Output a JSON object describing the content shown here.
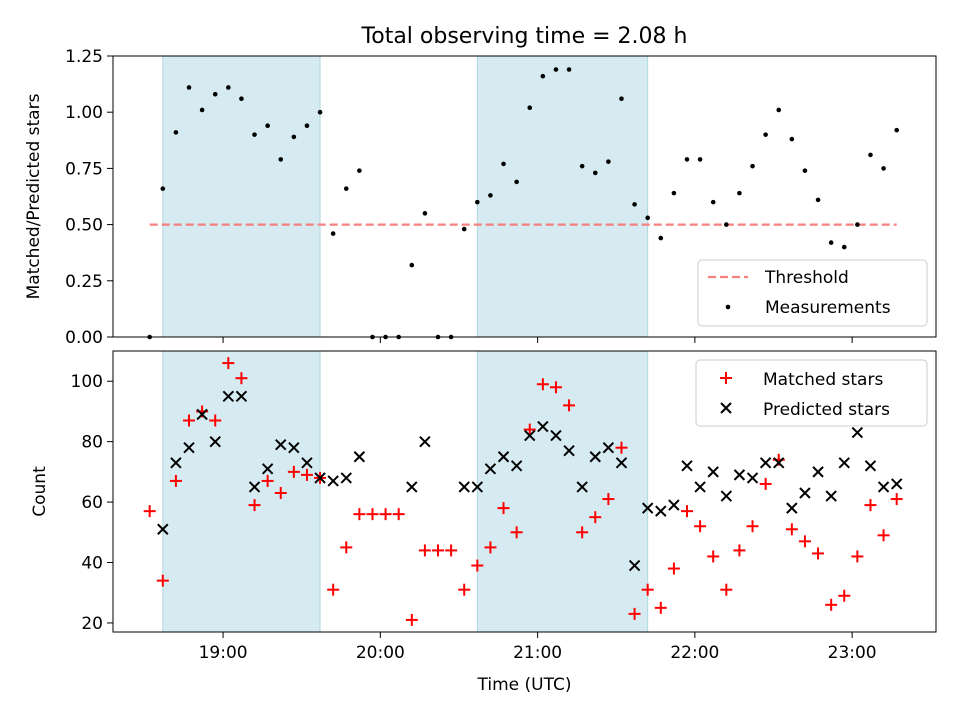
{
  "chart_data": [
    {
      "type": "scatter",
      "title": "Total observing time = 2.08 h",
      "ylabel": "Matched/Predicted stars",
      "xlabel": "",
      "x_unit": "hours UTC",
      "xlim": [
        "18:18",
        "23:32"
      ],
      "ylim": [
        0,
        1.25
      ],
      "yticks": [
        "0.00",
        "0.25",
        "0.50",
        "0.75",
        "1.00",
        "1.25"
      ],
      "grid": false,
      "legend": "bottom-right",
      "shaded_intervals": [
        [
          "18:37",
          "19:37"
        ],
        [
          "20:37",
          "21:42"
        ]
      ],
      "shade_color": "#d5ebf1",
      "series": [
        {
          "name": "Threshold",
          "kind": "dashed-line",
          "color": "#f48080",
          "x": [
            "18:32",
            "23:17"
          ],
          "values": [
            0.5,
            0.5
          ]
        },
        {
          "name": "Measurements",
          "kind": "dot",
          "color": "#000000",
          "x": [
            "18:32",
            "18:37",
            "18:42",
            "18:47",
            "18:52",
            "18:57",
            "19:02",
            "19:07",
            "19:12",
            "19:17",
            "19:22",
            "19:27",
            "19:32",
            "19:37",
            "19:42",
            "19:47",
            "19:52",
            "19:57",
            "20:02",
            "20:07",
            "20:12",
            "20:17",
            "20:22",
            "20:27",
            "20:32",
            "20:37",
            "20:42",
            "20:47",
            "20:52",
            "20:57",
            "21:02",
            "21:07",
            "21:12",
            "21:17",
            "21:22",
            "21:27",
            "21:32",
            "21:37",
            "21:42",
            "21:47",
            "21:52",
            "21:57",
            "22:02",
            "22:07",
            "22:12",
            "22:17",
            "22:22",
            "22:27",
            "22:32",
            "22:37",
            "22:42",
            "22:47",
            "22:52",
            "22:57",
            "23:02",
            "23:07",
            "23:12",
            "23:17"
          ],
          "values": [
            0.0,
            0.66,
            0.91,
            1.11,
            1.01,
            1.08,
            1.11,
            1.06,
            0.9,
            0.94,
            0.79,
            0.89,
            0.94,
            1.0,
            0.46,
            0.66,
            0.74,
            0.0,
            0.0,
            0.0,
            0.32,
            0.55,
            0.0,
            0.0,
            0.48,
            0.6,
            0.63,
            0.77,
            0.69,
            1.02,
            1.16,
            1.19,
            1.19,
            0.76,
            0.73,
            0.78,
            1.06,
            0.59,
            0.53,
            0.44,
            0.64,
            0.79,
            0.79,
            0.6,
            0.5,
            0.64,
            0.76,
            0.9,
            1.01,
            0.88,
            0.74,
            0.61,
            0.42,
            0.4,
            0.5,
            0.81,
            0.75,
            0.92
          ]
        }
      ]
    },
    {
      "type": "scatter",
      "title": "",
      "ylabel": "Count",
      "xlabel": "Time (UTC)",
      "x_unit": "hours UTC",
      "xlim": [
        "18:18",
        "23:32"
      ],
      "ylim": [
        17,
        110
      ],
      "yticks": [
        "20",
        "40",
        "60",
        "80",
        "100"
      ],
      "xticks": [
        "19:00",
        "20:00",
        "21:00",
        "22:00",
        "23:00"
      ],
      "grid": false,
      "legend": "top-right",
      "shaded_intervals": [
        [
          "18:37",
          "19:37"
        ],
        [
          "20:37",
          "21:42"
        ]
      ],
      "shade_color": "#d5ebf1",
      "series": [
        {
          "name": "Matched stars",
          "marker": "plus",
          "color": "#ff0000",
          "x": [
            "18:32",
            "18:37",
            "18:42",
            "18:47",
            "18:52",
            "18:57",
            "19:02",
            "19:07",
            "19:12",
            "19:17",
            "19:22",
            "19:27",
            "19:32",
            "19:37",
            "19:42",
            "19:47",
            "19:52",
            "19:57",
            "20:02",
            "20:07",
            "20:12",
            "20:17",
            "20:22",
            "20:27",
            "20:32",
            "20:37",
            "20:42",
            "20:47",
            "20:52",
            "20:57",
            "21:02",
            "21:07",
            "21:12",
            "21:17",
            "21:22",
            "21:27",
            "21:32",
            "21:37",
            "21:42",
            "21:47",
            "21:52",
            "21:57",
            "22:02",
            "22:07",
            "22:12",
            "22:17",
            "22:22",
            "22:27",
            "22:32",
            "22:37",
            "22:42",
            "22:47",
            "22:52",
            "22:57",
            "23:02",
            "23:07",
            "23:12",
            "23:17"
          ],
          "values": [
            57,
            34,
            67,
            87,
            90,
            87,
            106,
            101,
            59,
            67,
            63,
            70,
            69,
            68,
            31,
            45,
            56,
            56,
            56,
            56,
            21,
            44,
            44,
            44,
            31,
            39,
            45,
            58,
            50,
            84,
            99,
            98,
            92,
            50,
            55,
            61,
            78,
            23,
            31,
            25,
            38,
            57,
            52,
            42,
            31,
            44,
            52,
            66,
            74,
            51,
            47,
            43,
            26,
            29,
            42,
            59,
            49,
            61
          ]
        },
        {
          "name": "Predicted stars",
          "marker": "x",
          "color": "#000000",
          "x": [
            "18:37",
            "18:42",
            "18:47",
            "18:52",
            "18:57",
            "19:02",
            "19:07",
            "19:12",
            "19:17",
            "19:22",
            "19:27",
            "19:32",
            "19:37",
            "19:42",
            "19:47",
            "19:52",
            "20:12",
            "20:17",
            "20:32",
            "20:37",
            "20:42",
            "20:47",
            "20:52",
            "20:57",
            "21:02",
            "21:07",
            "21:12",
            "21:17",
            "21:22",
            "21:27",
            "21:32",
            "21:37",
            "21:42",
            "21:47",
            "21:52",
            "21:57",
            "22:02",
            "22:07",
            "22:12",
            "22:17",
            "22:22",
            "22:27",
            "22:32",
            "22:37",
            "22:42",
            "22:47",
            "22:52",
            "22:57",
            "23:02",
            "23:07",
            "23:12",
            "23:17"
          ],
          "values": [
            51,
            73,
            78,
            89,
            80,
            95,
            95,
            65,
            71,
            79,
            78,
            73,
            68,
            67,
            68,
            75,
            65,
            80,
            65,
            65,
            71,
            75,
            72,
            82,
            85,
            82,
            77,
            65,
            75,
            78,
            73,
            39,
            58,
            57,
            59,
            72,
            65,
            70,
            62,
            69,
            68,
            73,
            73,
            58,
            63,
            70,
            62,
            73,
            83,
            72,
            65,
            66
          ]
        }
      ]
    }
  ]
}
